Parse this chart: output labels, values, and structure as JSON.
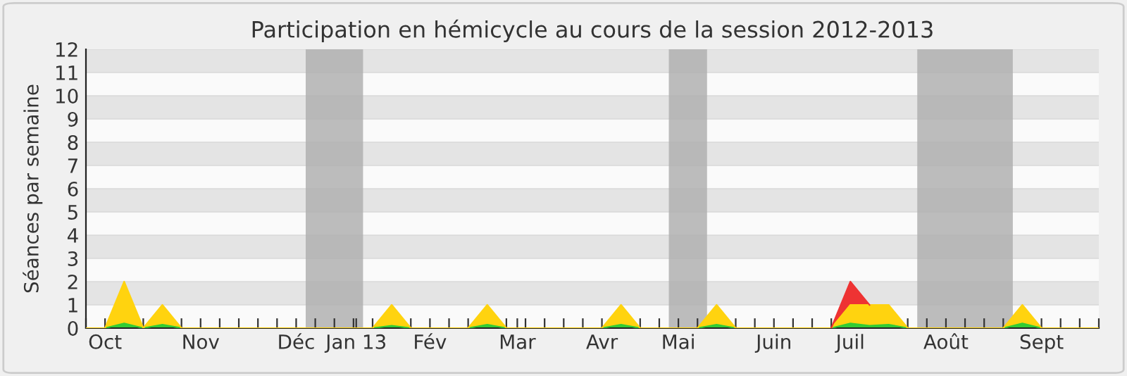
{
  "chart_data": {
    "type": "area",
    "stacked": true,
    "title": "Participation en hémicycle au cours de la session 2012-2013",
    "ylabel": "Séances par semaine",
    "x": [
      "2012-09-24",
      "2012-10-01",
      "2012-10-08",
      "2012-10-15",
      "2012-10-22",
      "2012-10-29",
      "2012-11-05",
      "2012-11-12",
      "2012-11-19",
      "2012-11-26",
      "2012-12-03",
      "2012-12-10",
      "2012-12-17",
      "2012-12-24",
      "2012-12-31",
      "2013-01-07",
      "2013-01-14",
      "2013-01-21",
      "2013-01-28",
      "2013-02-04",
      "2013-02-11",
      "2013-02-18",
      "2013-02-25",
      "2013-03-04",
      "2013-03-11",
      "2013-03-18",
      "2013-03-25",
      "2013-04-01",
      "2013-04-08",
      "2013-04-15",
      "2013-04-22",
      "2013-04-29",
      "2013-05-06",
      "2013-05-13",
      "2013-05-20",
      "2013-05-27",
      "2013-06-03",
      "2013-06-10",
      "2013-06-17",
      "2013-06-24",
      "2013-07-01",
      "2013-07-08",
      "2013-07-15",
      "2013-07-22",
      "2013-07-29",
      "2013-08-05",
      "2013-08-12",
      "2013-08-19",
      "2013-08-26",
      "2013-09-02",
      "2013-09-09",
      "2013-09-16",
      "2013-09-23",
      "2013-09-30"
    ],
    "series": [
      {
        "color": "#33cc33",
        "values": [
          0,
          0,
          0.2,
          0,
          0.15,
          0,
          0,
          0,
          0,
          0,
          0,
          0,
          0,
          0,
          0,
          0,
          0.1,
          0,
          0,
          0,
          0,
          0.15,
          0,
          0,
          0,
          0,
          0,
          0,
          0.15,
          0,
          0,
          0,
          0,
          0.15,
          0,
          0,
          0,
          0,
          0,
          0,
          0.2,
          0.1,
          0.15,
          0,
          0,
          0,
          0,
          0,
          0,
          0.2,
          0,
          0,
          0,
          0
        ]
      },
      {
        "color": "#ffd30f",
        "values": [
          0,
          0,
          1.8,
          0,
          0.85,
          0,
          0,
          0,
          0,
          0,
          0,
          0,
          0,
          0,
          0,
          0,
          0.9,
          0,
          0,
          0,
          0,
          0.85,
          0,
          0,
          0,
          0,
          0,
          0,
          0.85,
          0,
          0,
          0,
          0,
          0.85,
          0,
          0,
          0,
          0,
          0,
          0,
          0.8,
          0.9,
          0.85,
          0,
          0,
          0,
          0,
          0,
          0,
          0.8,
          0,
          0,
          0,
          0
        ]
      },
      {
        "color": "#ee3333",
        "values": [
          null,
          null,
          null,
          null,
          null,
          null,
          null,
          null,
          null,
          null,
          null,
          null,
          null,
          null,
          null,
          null,
          null,
          null,
          null,
          null,
          null,
          null,
          null,
          null,
          null,
          null,
          null,
          null,
          null,
          null,
          null,
          null,
          null,
          null,
          null,
          null,
          null,
          null,
          null,
          0,
          1,
          0,
          null,
          null,
          null,
          null,
          null,
          null,
          null,
          null,
          null,
          null,
          null,
          null
        ]
      }
    ],
    "xlim": [
      "2012-09-24",
      "2013-09-30"
    ],
    "xticks": [
      {
        "value": "2012-09-24",
        "label": null
      },
      {
        "value": "2012-10-01",
        "label": "Oct"
      },
      {
        "value": "2012-10-08",
        "label": null
      },
      {
        "value": "2012-10-15",
        "label": null
      },
      {
        "value": "2012-10-22",
        "label": null
      },
      {
        "value": "2012-10-29",
        "label": null
      },
      {
        "value": "2012-11-05",
        "label": "Nov"
      },
      {
        "value": "2012-11-12",
        "label": null
      },
      {
        "value": "2012-11-19",
        "label": null
      },
      {
        "value": "2012-11-26",
        "label": null
      },
      {
        "value": "2012-12-03",
        "label": null
      },
      {
        "value": "2012-12-10",
        "label": "Déc"
      },
      {
        "value": "2012-12-17",
        "label": null
      },
      {
        "value": "2012-12-24",
        "label": null
      },
      {
        "value": "2012-12-31",
        "label": null
      },
      {
        "value": "2013-01-01",
        "label": "Jan 13"
      },
      {
        "value": "2013-01-07",
        "label": null
      },
      {
        "value": "2013-01-14",
        "label": null
      },
      {
        "value": "2013-01-21",
        "label": null
      },
      {
        "value": "2013-01-28",
        "label": "Fév"
      },
      {
        "value": "2013-02-04",
        "label": null
      },
      {
        "value": "2013-02-11",
        "label": null
      },
      {
        "value": "2013-02-18",
        "label": null
      },
      {
        "value": "2013-02-25",
        "label": null
      },
      {
        "value": "2013-03-01",
        "label": "Mar"
      },
      {
        "value": "2013-03-04",
        "label": null
      },
      {
        "value": "2013-03-11",
        "label": null
      },
      {
        "value": "2013-03-18",
        "label": null
      },
      {
        "value": "2013-03-25",
        "label": null
      },
      {
        "value": "2013-04-01",
        "label": "Avr"
      },
      {
        "value": "2013-04-08",
        "label": null
      },
      {
        "value": "2013-04-15",
        "label": null
      },
      {
        "value": "2013-04-22",
        "label": null
      },
      {
        "value": "2013-04-29",
        "label": "Mai"
      },
      {
        "value": "2013-05-06",
        "label": null
      },
      {
        "value": "2013-05-13",
        "label": null
      },
      {
        "value": "2013-05-20",
        "label": null
      },
      {
        "value": "2013-05-27",
        "label": null
      },
      {
        "value": "2013-06-03",
        "label": "Juin"
      },
      {
        "value": "2013-06-10",
        "label": null
      },
      {
        "value": "2013-06-17",
        "label": null
      },
      {
        "value": "2013-06-24",
        "label": null
      },
      {
        "value": "2013-07-01",
        "label": "Juil"
      },
      {
        "value": "2013-07-08",
        "label": null
      },
      {
        "value": "2013-07-15",
        "label": null
      },
      {
        "value": "2013-07-22",
        "label": null
      },
      {
        "value": "2013-07-29",
        "label": null
      },
      {
        "value": "2013-08-05",
        "label": "Août"
      },
      {
        "value": "2013-08-12",
        "label": null
      },
      {
        "value": "2013-08-19",
        "label": null
      },
      {
        "value": "2013-08-26",
        "label": null
      },
      {
        "value": "2013-09-02",
        "label": null
      },
      {
        "value": "2013-09-09",
        "label": "Sept"
      },
      {
        "value": "2013-09-16",
        "label": null
      },
      {
        "value": "2013-09-23",
        "label": null
      },
      {
        "value": "2013-09-30",
        "label": null
      }
    ],
    "ylim": [
      0,
      12
    ],
    "yticks": [
      0,
      1,
      2,
      3,
      4,
      5,
      6,
      7,
      8,
      9,
      10,
      11,
      12
    ],
    "grid": "y",
    "bands": [
      {
        "axis": "x",
        "from": "2012-12-13T12:00",
        "to": "2013-01-03T12:00",
        "color": "#b0b0b0"
      },
      {
        "axis": "x",
        "from": "2013-04-25T12:00",
        "to": "2013-05-09T12:00",
        "color": "#b0b0b0"
      },
      {
        "axis": "x",
        "from": "2013-07-25T12:00",
        "to": "2013-08-29T12:00",
        "color": "#b0b0b0"
      }
    ]
  }
}
